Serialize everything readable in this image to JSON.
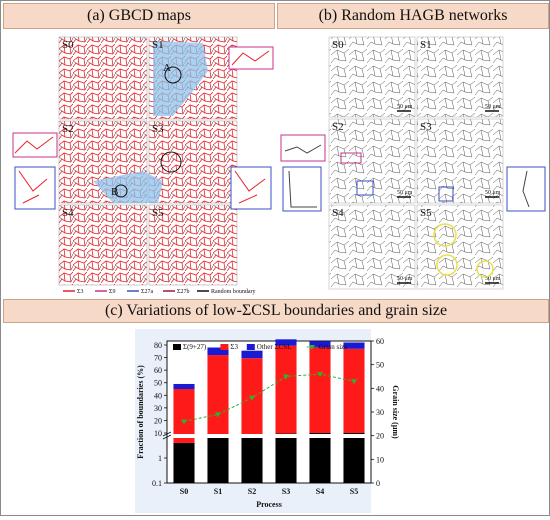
{
  "panels": {
    "a_title": "(a) GBCD maps",
    "b_title": "(b) Random HAGB networks",
    "c_title": "(c) Variations of low-ΣCSL boundaries and grain size"
  },
  "maps": {
    "labels": [
      "S0",
      "S1",
      "S2",
      "S3",
      "S4",
      "S5"
    ],
    "scale_bar": "50 μm",
    "region_a": "A",
    "region_b": "B",
    "gbcd_legend": [
      "Σ3",
      "Σ9",
      "Σ27a",
      "Σ27b",
      "Random boundary"
    ],
    "gbcd_legend_colors": [
      "#e8212b",
      "#c8308c",
      "#3a4fc7",
      "#9b1b3b",
      "#111111"
    ]
  },
  "chart_data": {
    "type": "bar",
    "categories": [
      "S0",
      "S1",
      "S2",
      "S3",
      "S4",
      "S5"
    ],
    "series": [
      {
        "name": "Σ(9+27)",
        "values": [
          4,
          8,
          7.5,
          9.5,
          10,
          10
        ],
        "color": "#000000"
      },
      {
        "name": "Σ3",
        "values": [
          41,
          64,
          62,
          70,
          68,
          67
        ],
        "color": "#ff1a1a"
      },
      {
        "name": "Other ΣCSL",
        "values": [
          4,
          6,
          6,
          5,
          5,
          5
        ],
        "color": "#1a1ad4"
      }
    ],
    "grain_size": {
      "name": "Grian size",
      "values": [
        26,
        29,
        36,
        45,
        46,
        43
      ],
      "color": "#2db32d"
    },
    "xlabel": "Process",
    "ylabel": "Fraction of boundaries (%)",
    "y2label": "Grain size (μm)",
    "yticks": [
      "0.1",
      "1",
      "10",
      "20",
      "30",
      "40",
      "50",
      "60",
      "70",
      "80"
    ],
    "y2ticks": [
      "0",
      "10",
      "20",
      "30",
      "40",
      "50",
      "60"
    ],
    "y2lim": [
      0,
      60
    ],
    "legend_position": "top",
    "background": "#eaf0fa"
  }
}
